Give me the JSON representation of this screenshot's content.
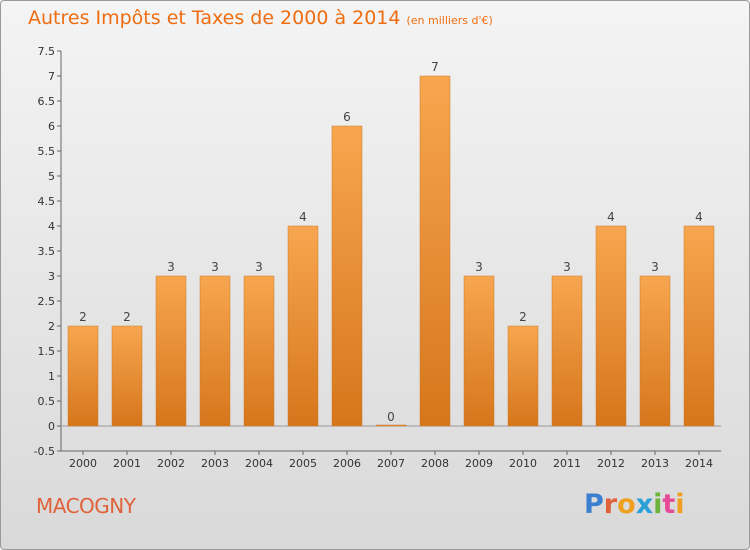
{
  "header": {
    "title": "Autres Impôts et Taxes de 2000 à 2014",
    "unit": "(en milliers d'€)"
  },
  "footer": {
    "commune": "MACOGNY",
    "logo": "Proxiti"
  },
  "colors": {
    "bar_top": "#f7a64f",
    "bar_bottom": "#d6761c",
    "title": "#ef6d10",
    "commune": "#e0623b",
    "logo_letters": [
      "#3b7fcf",
      "#e0623b",
      "#f0a020",
      "#2aa0d8",
      "#6bb33a",
      "#e84a9a",
      "#f0a020"
    ]
  },
  "chart_data": {
    "type": "bar",
    "title": "Autres Impôts et Taxes de 2000 à 2014",
    "xlabel": "",
    "ylabel": "",
    "categories": [
      "2000",
      "2001",
      "2002",
      "2003",
      "2004",
      "2005",
      "2006",
      "2007",
      "2008",
      "2009",
      "2010",
      "2011",
      "2012",
      "2013",
      "2014"
    ],
    "values": [
      2,
      2,
      3,
      3,
      3,
      4,
      6,
      0,
      7,
      3,
      2,
      3,
      4,
      3,
      4
    ],
    "value_labels": [
      "2",
      "2",
      "3",
      "3",
      "3",
      "4",
      "6",
      "0",
      "7",
      "3",
      "2",
      "3",
      "4",
      "3",
      "4"
    ],
    "yticks": [
      "-0.5",
      "0",
      "0.5",
      "1",
      "1.5",
      "2",
      "2.5",
      "3",
      "3.5",
      "4",
      "4.5",
      "5",
      "5.5",
      "6",
      "6.5",
      "7",
      "7.5"
    ],
    "ylim": [
      -0.5,
      7.5
    ],
    "grid": false,
    "legend": "none"
  }
}
